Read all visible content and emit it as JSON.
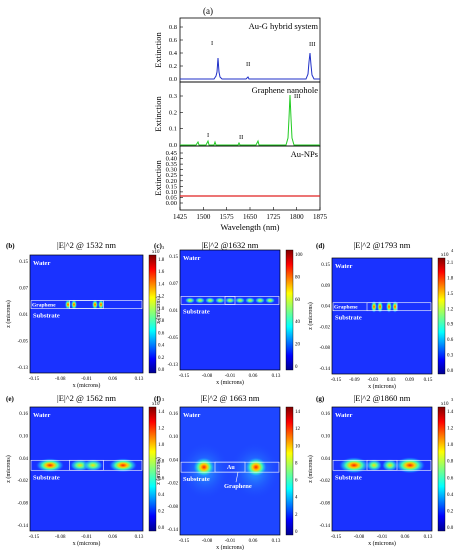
{
  "figure": {
    "panel_a": {
      "label": "(a)",
      "xlabel": "Wavelength (nm)",
      "ylabel": "Extinction",
      "x_ticks": [
        "1425",
        "1500",
        "1575",
        "1650",
        "1725",
        "1800",
        "1875"
      ],
      "subplots": [
        {
          "name": "Au-G hybrid system",
          "y_ticks": [
            "0.8",
            "0.6",
            "0.4",
            "0.2",
            "0.0"
          ],
          "peak_labels": [
            "I",
            "II",
            "III"
          ],
          "color": "#1f2fc8"
        },
        {
          "name": "Graphene nanohole",
          "y_ticks": [
            "0.3",
            "0.2",
            "0.1",
            "0.0"
          ],
          "peak_labels": [
            "I",
            "II",
            "III"
          ],
          "color": "#22cc22"
        },
        {
          "name": "Au-NPs",
          "y_ticks": [
            "0.45",
            "0.40",
            "0.35",
            "0.30",
            "0.25",
            "0.20",
            "0.15",
            "0.10",
            "0.05",
            "0.00"
          ],
          "peak_labels": [],
          "color": "#e02020"
        }
      ]
    },
    "maps": [
      {
        "label": "(b)",
        "title": "|E|^2 @ 1532 nm",
        "colorbar_ticks": [
          "1.8",
          "1.6",
          "1.4",
          "1.2",
          "1.0",
          "0.8",
          "0.6",
          "0.4",
          "0.2",
          "0.0"
        ],
        "colorbar_exp": "x10",
        "exp_power": "3",
        "y_ticks": [
          "0.15",
          "0.07",
          "0.01",
          "-0.05",
          "-0.13"
        ],
        "x_ticks": [
          "-0.15",
          "-0.08",
          "-0.01",
          "0.06",
          "0.13"
        ],
        "labels": [
          "Water",
          "Graphene",
          "Substrate"
        ],
        "xlabel": "x (microns)",
        "ylabel": "z (microns)"
      },
      {
        "label": "(c)",
        "title": "|E|^2 @1632 nm",
        "colorbar_ticks": [
          "100",
          "80",
          "60",
          "40",
          "20",
          "0"
        ],
        "colorbar_exp": "",
        "exp_power": "",
        "y_ticks": [
          "0.15",
          "0.07",
          "0.01",
          "-0.05",
          "-0.13"
        ],
        "x_ticks": [
          "-0.15",
          "-0.08",
          "-0.01",
          "0.06",
          "0.13"
        ],
        "labels": [
          "Water",
          "Substrate"
        ],
        "xlabel": "x (microns)",
        "ylabel": "z (microns)"
      },
      {
        "label": "(d)",
        "title": "|E|^2 @1793 nm",
        "colorbar_ticks": [
          "2.1",
          "1.8",
          "1.5",
          "1.2",
          "0.9",
          "0.6",
          "0.3",
          "0.0"
        ],
        "colorbar_exp": "x10",
        "exp_power": "4",
        "y_ticks": [
          "0.15",
          "0.09",
          "0.04",
          "-0.02",
          "-0.08",
          "-0.14"
        ],
        "x_ticks": [
          "-0.15",
          "-0.09",
          "-0.03",
          "0.03",
          "0.09",
          "0.15"
        ],
        "labels": [
          "Water",
          "Graphene",
          "Substrate"
        ],
        "xlabel": "x (microns)",
        "ylabel": "z (microns)"
      },
      {
        "label": "(e)",
        "title": "|E|^2 @ 1562 nm",
        "colorbar_ticks": [
          "1.4",
          "1.2",
          "1.0",
          "0.8",
          "0.6",
          "0.4",
          "0.2",
          "0.0"
        ],
        "colorbar_exp": "x10",
        "exp_power": "3",
        "y_ticks": [
          "0.16",
          "0.10",
          "0.04",
          "-0.02",
          "-0.08",
          "-0.14"
        ],
        "x_ticks": [
          "-0.15",
          "-0.08",
          "-0.01",
          "0.06",
          "0.13"
        ],
        "labels": [
          "Water",
          "Substrate"
        ],
        "xlabel": "x (microns)",
        "ylabel": "z (microns)"
      },
      {
        "label": "(f)",
        "title": "|E|^2 @ 1663 nm",
        "colorbar_ticks": [
          "14",
          "12",
          "10",
          "8",
          "6",
          "4",
          "2",
          "0"
        ],
        "colorbar_exp": "",
        "exp_power": "",
        "y_ticks": [
          "0.16",
          "0.10",
          "0.04",
          "-0.02",
          "-0.08",
          "-0.14"
        ],
        "x_ticks": [
          "-0.15",
          "-0.08",
          "-0.01",
          "0.06",
          "0.13"
        ],
        "labels": [
          "Water",
          "Substrate",
          "Au",
          "Graphene"
        ],
        "xlabel": "x (microns)",
        "ylabel": "z (microns)"
      },
      {
        "label": "(g)",
        "title": "|E|^2 @1860 nm",
        "colorbar_ticks": [
          "1.4",
          "1.2",
          "1.0",
          "0.8",
          "0.6",
          "0.4",
          "0.2",
          "0.0"
        ],
        "colorbar_exp": "x10",
        "exp_power": "3",
        "y_ticks": [
          "0.16",
          "0.10",
          "0.04",
          "-0.02",
          "-0.08",
          "-0.14"
        ],
        "x_ticks": [
          "-0.15",
          "-0.08",
          "-0.01",
          "0.06",
          "0.13"
        ],
        "labels": [
          "Water",
          "Substrate"
        ],
        "xlabel": "x (microns)",
        "ylabel": "z (microns)"
      }
    ]
  }
}
